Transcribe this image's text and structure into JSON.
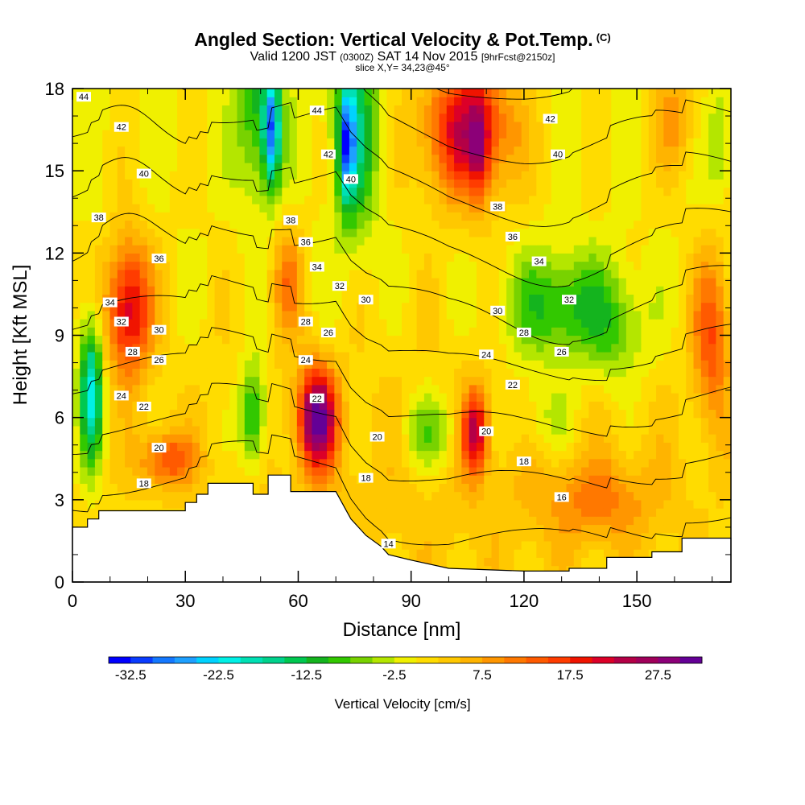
{
  "title": {
    "main": "Angled Section: Vertical Velocity & Pot.Temp.",
    "mark": "(C)",
    "valid_a": "Valid 1200 JST",
    "valid_b": "(0300Z)",
    "valid_c": "SAT 14 Nov 2015",
    "valid_d": "[9hrFcst@2150z]",
    "slice": "slice X,Y= 34,23@45°"
  },
  "chart_data": {
    "type": "heatmap",
    "xlabel": "Distance [nm]",
    "ylabel": "Height [Kft MSL]",
    "xlim": [
      0,
      175
    ],
    "ylim": [
      0,
      18
    ],
    "xticks": [
      0,
      30,
      60,
      90,
      120,
      150
    ],
    "yticks": [
      0,
      3,
      6,
      9,
      12,
      15,
      18
    ],
    "colorbar": {
      "label": "Vertical Velocity [cm/s]",
      "min": -35,
      "max": 32.5,
      "step": 2.5,
      "tick_labels": [
        "-32.5",
        "-22.5",
        "-12.5",
        "-2.5",
        "7.5",
        "17.5",
        "27.5"
      ],
      "colors": [
        "#0000ff",
        "#0a3cff",
        "#1478ff",
        "#1ea0ff",
        "#00d2ff",
        "#00f0e6",
        "#00e0b4",
        "#00d28c",
        "#00c850",
        "#14b41e",
        "#32c800",
        "#78d200",
        "#b4e600",
        "#f0f000",
        "#ffdc00",
        "#ffc800",
        "#ffb400",
        "#ff9600",
        "#ff7800",
        "#ff5a00",
        "#ff3c00",
        "#f01400",
        "#dc0028",
        "#b40046",
        "#a0005a",
        "#8c0078",
        "#640096"
      ]
    },
    "velocity_blobs": [
      {
        "x": 100,
        "y": 3.5,
        "sx": 90,
        "sy": 6,
        "v": 4
      },
      {
        "x": 15,
        "y": 10,
        "sx": 6,
        "sy": 2.5,
        "v": 22
      },
      {
        "x": 5,
        "y": 7,
        "sx": 3,
        "sy": 2.5,
        "v": -22
      },
      {
        "x": 48,
        "y": 6,
        "sx": 3.5,
        "sy": 2,
        "v": -14
      },
      {
        "x": 50,
        "y": 17,
        "sx": 6,
        "sy": 3,
        "v": -12
      },
      {
        "x": 53,
        "y": 16.5,
        "sx": 2,
        "sy": 2,
        "v": -22
      },
      {
        "x": 75,
        "y": 16.5,
        "sx": 6,
        "sy": 4,
        "v": -14
      },
      {
        "x": 73,
        "y": 16,
        "sx": 2,
        "sy": 2,
        "v": -22
      },
      {
        "x": 65,
        "y": 6,
        "sx": 5,
        "sy": 1.8,
        "v": 30
      },
      {
        "x": 57,
        "y": 11,
        "sx": 4,
        "sy": 2,
        "v": 10
      },
      {
        "x": 105,
        "y": 16.5,
        "sx": 12,
        "sy": 2.5,
        "v": 22
      },
      {
        "x": 108,
        "y": 16,
        "sx": 2.5,
        "sy": 2,
        "v": 10
      },
      {
        "x": 107,
        "y": 5.5,
        "sx": 3.5,
        "sy": 1.5,
        "v": 22
      },
      {
        "x": 130,
        "y": 10,
        "sx": 15,
        "sy": 2,
        "v": -12
      },
      {
        "x": 145,
        "y": 9,
        "sx": 8,
        "sy": 2,
        "v": -6
      },
      {
        "x": 95,
        "y": 5.5,
        "sx": 8,
        "sy": 1.5,
        "v": -9
      },
      {
        "x": 25,
        "y": 4.5,
        "sx": 7,
        "sy": 1,
        "v": 14
      },
      {
        "x": 160,
        "y": 17,
        "sx": 6,
        "sy": 2,
        "v": 8
      },
      {
        "x": 172,
        "y": 16,
        "sx": 3,
        "sy": 2,
        "v": -6
      },
      {
        "x": 140,
        "y": 3,
        "sx": 15,
        "sy": 1.5,
        "v": 8
      },
      {
        "x": 125,
        "y": 6,
        "sx": 10,
        "sy": 1.5,
        "v": -5
      },
      {
        "x": 170,
        "y": 9,
        "sx": 5,
        "sy": 3,
        "v": 14
      }
    ],
    "terrain": [
      [
        0,
        2
      ],
      [
        4,
        2
      ],
      [
        4,
        2.3
      ],
      [
        7,
        2.3
      ],
      [
        7,
        2.6
      ],
      [
        30,
        2.6
      ],
      [
        30,
        2.9
      ],
      [
        33,
        2.9
      ],
      [
        33,
        3.2
      ],
      [
        36,
        3.2
      ],
      [
        36,
        3.6
      ],
      [
        48,
        3.6
      ],
      [
        48,
        3.2
      ],
      [
        52,
        3.2
      ],
      [
        52,
        3.9
      ],
      [
        58,
        3.9
      ],
      [
        58,
        3.3
      ],
      [
        70,
        3.3
      ],
      [
        74,
        2.3
      ],
      [
        78,
        1.7
      ],
      [
        82,
        1.3
      ],
      [
        84,
        1
      ],
      [
        90,
        0.8
      ],
      [
        100,
        0.5
      ],
      [
        120,
        0.4
      ],
      [
        132,
        0.4
      ],
      [
        132,
        0.5
      ],
      [
        142,
        0.5
      ],
      [
        142,
        0.9
      ],
      [
        154,
        0.9
      ],
      [
        154,
        1.1
      ],
      [
        162,
        1.1
      ],
      [
        162,
        1.6
      ],
      [
        175,
        1.6
      ]
    ],
    "theta_lines": [
      14,
      16,
      18,
      20,
      22,
      24,
      26,
      28,
      30,
      32,
      34,
      36,
      38,
      40,
      42,
      44
    ],
    "contour_labels": [
      {
        "text": "44",
        "x": 3,
        "y": 17.7
      },
      {
        "text": "44",
        "x": 65,
        "y": 17.2
      },
      {
        "text": "42",
        "x": 13,
        "y": 16.6
      },
      {
        "text": "42",
        "x": 68,
        "y": 15.6
      },
      {
        "text": "42",
        "x": 127,
        "y": 16.9
      },
      {
        "text": "40",
        "x": 19,
        "y": 14.9
      },
      {
        "text": "40",
        "x": 74,
        "y": 14.7
      },
      {
        "text": "40",
        "x": 129,
        "y": 15.6
      },
      {
        "text": "38",
        "x": 7,
        "y": 13.3
      },
      {
        "text": "38",
        "x": 58,
        "y": 13.2
      },
      {
        "text": "38",
        "x": 113,
        "y": 13.7
      },
      {
        "text": "36",
        "x": 23,
        "y": 11.8
      },
      {
        "text": "36",
        "x": 62,
        "y": 12.4
      },
      {
        "text": "36",
        "x": 117,
        "y": 12.6
      },
      {
        "text": "34",
        "x": 10,
        "y": 10.2
      },
      {
        "text": "34",
        "x": 65,
        "y": 11.5
      },
      {
        "text": "34",
        "x": 124,
        "y": 11.7
      },
      {
        "text": "32",
        "x": 13,
        "y": 9.5
      },
      {
        "text": "32",
        "x": 71,
        "y": 10.8
      },
      {
        "text": "32",
        "x": 132,
        "y": 10.3
      },
      {
        "text": "30",
        "x": 23,
        "y": 9.2
      },
      {
        "text": "30",
        "x": 78,
        "y": 10.3
      },
      {
        "text": "30",
        "x": 113,
        "y": 9.9
      },
      {
        "text": "28",
        "x": 16,
        "y": 8.4
      },
      {
        "text": "28",
        "x": 62,
        "y": 9.5
      },
      {
        "text": "28",
        "x": 120,
        "y": 9.1
      },
      {
        "text": "26",
        "x": 23,
        "y": 8.1
      },
      {
        "text": "26",
        "x": 68,
        "y": 9.1
      },
      {
        "text": "26",
        "x": 130,
        "y": 8.4
      },
      {
        "text": "24",
        "x": 13,
        "y": 6.8
      },
      {
        "text": "24",
        "x": 62,
        "y": 8.1
      },
      {
        "text": "24",
        "x": 110,
        "y": 8.3
      },
      {
        "text": "22",
        "x": 19,
        "y": 6.4
      },
      {
        "text": "22",
        "x": 65,
        "y": 6.7
      },
      {
        "text": "22",
        "x": 117,
        "y": 7.2
      },
      {
        "text": "20",
        "x": 23,
        "y": 4.9
      },
      {
        "text": "20",
        "x": 81,
        "y": 5.3
      },
      {
        "text": "20",
        "x": 110,
        "y": 5.5
      },
      {
        "text": "18",
        "x": 19,
        "y": 3.6
      },
      {
        "text": "18",
        "x": 78,
        "y": 3.8
      },
      {
        "text": "18",
        "x": 120,
        "y": 4.4
      },
      {
        "text": "16",
        "x": 130,
        "y": 3.1
      },
      {
        "text": "14",
        "x": 84,
        "y": 1.4
      }
    ]
  }
}
